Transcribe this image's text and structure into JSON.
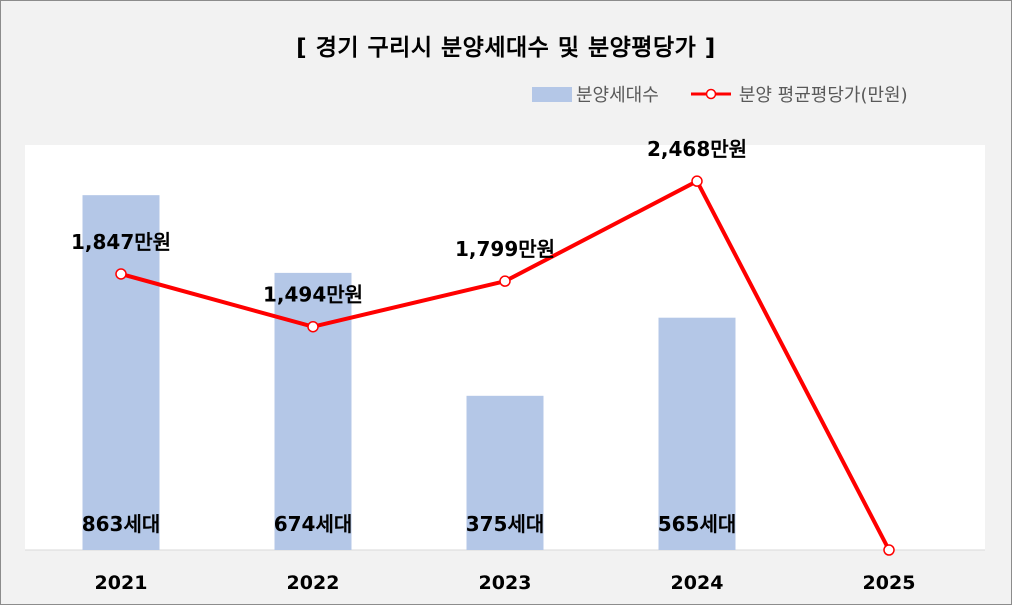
{
  "chart_data": {
    "type": "bar",
    "title": "[ 경기 구리시 분양세대수 및 분양평당가 ]",
    "categories": [
      "2021",
      "2022",
      "2023",
      "2024",
      "2025"
    ],
    "series": [
      {
        "name": "분양세대수",
        "type": "bar",
        "values": [
          863,
          674,
          375,
          565,
          null
        ],
        "labels": [
          "863세대",
          "674세대",
          "375세대",
          "565세대",
          ""
        ],
        "color": "#b4c7e7"
      },
      {
        "name": "분양 평균평당가(만원)",
        "type": "line",
        "values": [
          1847,
          1494,
          1799,
          2468,
          0
        ],
        "labels": [
          "1,847만원",
          "1,494만원",
          "1,799만원",
          "2,468만원",
          ""
        ],
        "color": "#ff0000"
      }
    ],
    "bar_axis_range": [
      0,
      985
    ],
    "line_axis_range": [
      0,
      2710
    ],
    "legend_position": "top-right",
    "grid": false
  }
}
